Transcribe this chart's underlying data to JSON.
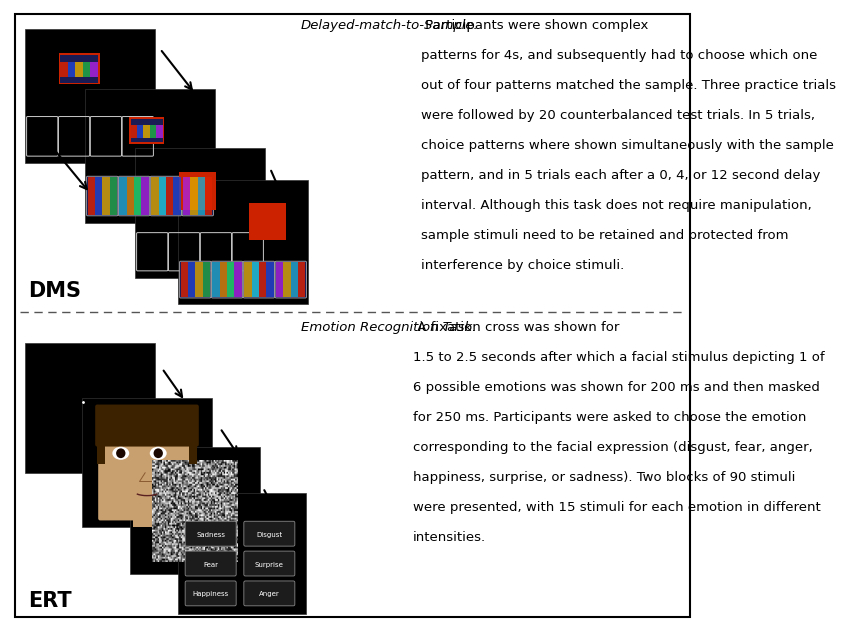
{
  "fig_width": 6.85,
  "fig_height": 6.13,
  "bg_color": "#ffffff",
  "border_color": "#000000",
  "red_color": "#cc2200",
  "dms_label": "DMS",
  "ert_label": "ERT",
  "dms_italic": "Delayed-match-to-Sample.",
  "dms_rest": " Participants were shown complex\n\npatterns for 4s, and subsequently had to choose which one\n\nout of four patterns matched the sample. Three practice trials\n\nwere followed by 20 counterbalanced test trials. In 5 trials,\n\nchoice patterns where shown simultaneously with the sample\n\npattern, and in 5 trials each after a 0, 4, or 12 second delay\n\ninterval. Although this task does not require manipulation,\n\nsample stimuli need to be retained and protected from\n\ninterference by choice stimuli.",
  "ert_italic": "Emotion Recognition Task.",
  "ert_rest": " A fixation cross was shown for\n\n1.5 to 2.5 seconds after which a facial stimulus depicting 1 of\n\n6 possible emotions was shown for 200 ms and then masked\n\nfor 250 ms. Participants were asked to choose the emotion\n\ncorresponding to the facial expression (disgust, fear, anger,\n\nhappiness, surprise, or sadness). Two blocks of 90 stimuli\n\nwere presented, with 15 stimuli for each emotion in different\n\nintensities.",
  "text_fontsize": 9.5,
  "label_fontsize": 15
}
